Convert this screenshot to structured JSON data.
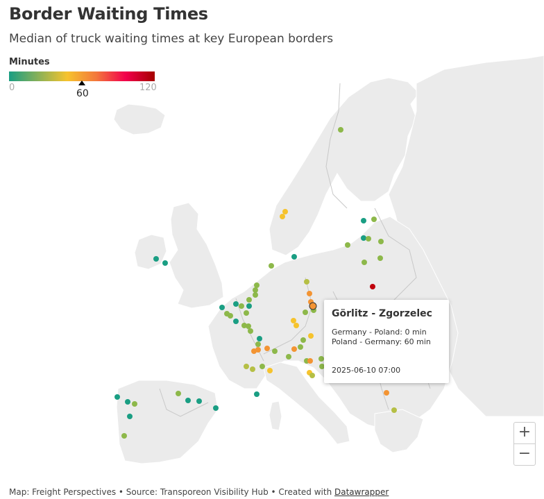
{
  "header": {
    "title": "Border Waiting Times",
    "subtitle": "Median of truck waiting times at key European borders"
  },
  "legend": {
    "title": "Minutes",
    "min": "0",
    "max": "120",
    "marker": "60",
    "colors": [
      "#1a9e83",
      "#f6c32d",
      "#f3773b",
      "#f2004c",
      "#a50000"
    ]
  },
  "tooltip": {
    "title": "Görlitz - Zgorzelec",
    "line1": "Germany - Poland: 0 min",
    "line2": "Poland - Germany: 60 min",
    "date": "2025-06-10 07:00"
  },
  "zoom": {
    "in_label": "+",
    "out_label": "−"
  },
  "footer": {
    "prefix": "Map: Freight Perspectives • Source: Transporeon Visibility Hub • Created with ",
    "link": "Datawrapper"
  },
  "marker_colors": {
    "teal": "#1a9e83",
    "green": "#4caf72",
    "olive": "#8db84a",
    "ygreen": "#b5bf45",
    "yellow": "#f6c32d",
    "orange": "#f39433",
    "red": "#c0000c"
  }
}
